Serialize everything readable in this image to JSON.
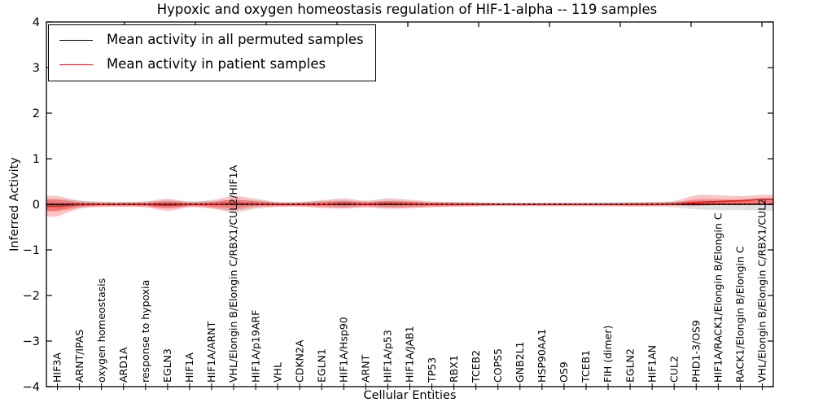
{
  "figure": {
    "title": "Hypoxic and oxygen homeostasis regulation of HIF-1-alpha -- 119 samples",
    "xlabel": "Cellular Entities",
    "ylabel": "Inferred Activity"
  },
  "legend": {
    "items": [
      {
        "label": "Mean activity in all permuted samples",
        "color": "#000000"
      },
      {
        "label": "Mean activity in patient samples",
        "color": "#e62222"
      }
    ],
    "position": "upper left"
  },
  "chart_data": {
    "type": "line",
    "title": "Hypoxic and oxygen homeostasis regulation of HIF-1-alpha -- 119 samples",
    "xlabel": "Cellular Entities",
    "ylabel": "Inferred Activity",
    "ylim": [
      -4,
      4
    ],
    "yticks": [
      4,
      3,
      2,
      1,
      0,
      -1,
      -2,
      -3,
      -4
    ],
    "ytick_labels": [
      "4",
      "3",
      "2",
      "1",
      "0",
      "−1",
      "−2",
      "−3",
      "−4"
    ],
    "grid": false,
    "zero_line": {
      "style": "dotted",
      "color": "#000000",
      "y": 0
    },
    "legend_position": "upper left",
    "categories": [
      "HIF3A",
      "ARNT/IPAS",
      "oxygen homeostasis",
      "ARD1A",
      "response to hypoxia",
      "EGLN3",
      "HIF1A",
      "HIF1A/ARNT",
      "VHL/Elongin B/Elongin C/RBX1/CUL2/HIF1A",
      "HIF1A/p19ARF",
      "VHL",
      "CDKN2A",
      "EGLN1",
      "HIF1A/Hsp90",
      "ARNT",
      "HIF1A/p53",
      "HIF1A/JAB1",
      "TP53",
      "RBX1",
      "TCEB2",
      "COPS5",
      "GNB2L1",
      "HSP90AA1",
      "OS9",
      "TCEB1",
      "FIH (dimer)",
      "EGLN2",
      "HIF1AN",
      "CUL2",
      "PHD1-3/OS9",
      "HIF1A/RACK1/Elongin B/Elongin C",
      "RACK1/Elongin B/Elongin C",
      "VHL/Elongin B/Elongin C/RBX1/CUL2"
    ],
    "series": [
      {
        "name": "Mean activity in all permuted samples",
        "color": "#000000",
        "values": [
          0,
          0,
          0,
          0,
          0,
          0,
          0,
          0,
          0,
          0,
          0,
          0,
          0,
          0,
          0,
          0,
          0,
          0,
          0,
          0,
          0,
          0,
          0,
          0,
          0,
          0,
          0,
          0,
          0,
          0,
          0,
          0,
          0
        ]
      },
      {
        "name": "Mean activity in patient samples",
        "color": "#e62222",
        "values": [
          -0.04,
          -0.01,
          0,
          0,
          0,
          -0.02,
          0,
          0,
          0.02,
          0.01,
          0,
          0,
          0,
          0.02,
          0,
          0.02,
          0.01,
          0,
          0,
          0,
          0,
          0,
          0,
          0,
          0,
          0,
          0,
          0,
          0.01,
          0.04,
          0.06,
          0.08,
          0.11
        ]
      }
    ],
    "bands": [
      {
        "name": "permuted-samples-spread",
        "color": "#777777",
        "opacity": 0.22,
        "upper": [
          0.12,
          0.08,
          0.06,
          0.05,
          0.06,
          0.08,
          0.06,
          0.07,
          0.1,
          0.08,
          0.05,
          0.05,
          0.07,
          0.08,
          0.06,
          0.08,
          0.07,
          0.05,
          0.05,
          0.05,
          0.04,
          0.04,
          0.04,
          0.04,
          0.04,
          0.05,
          0.05,
          0.05,
          0.06,
          0.07,
          0.07,
          0.07,
          0.07
        ],
        "lower": [
          -0.14,
          -0.09,
          -0.06,
          -0.05,
          -0.06,
          -0.09,
          -0.06,
          -0.08,
          -0.19,
          -0.1,
          -0.06,
          -0.05,
          -0.08,
          -0.09,
          -0.07,
          -0.09,
          -0.08,
          -0.06,
          -0.05,
          -0.05,
          -0.04,
          -0.04,
          -0.04,
          -0.05,
          -0.05,
          -0.05,
          -0.05,
          -0.05,
          -0.07,
          -0.11,
          -0.13,
          -0.13,
          -0.14
        ]
      },
      {
        "name": "patient-samples-spread",
        "color": "#ff0000",
        "opacity": 0.24,
        "upper": [
          0.18,
          0.08,
          0.05,
          0.05,
          0.06,
          0.12,
          0.06,
          0.09,
          0.18,
          0.12,
          0.05,
          0.05,
          0.09,
          0.13,
          0.08,
          0.13,
          0.1,
          0.06,
          0.05,
          0.04,
          0.03,
          0.03,
          0.03,
          0.03,
          0.03,
          0.03,
          0.04,
          0.05,
          0.07,
          0.2,
          0.2,
          0.18,
          0.21
        ],
        "lower": [
          -0.26,
          -0.09,
          -0.05,
          -0.05,
          -0.06,
          -0.14,
          -0.06,
          -0.09,
          -0.14,
          -0.07,
          -0.05,
          -0.05,
          -0.07,
          -0.09,
          -0.06,
          -0.09,
          -0.08,
          -0.06,
          -0.05,
          -0.04,
          -0.03,
          -0.03,
          -0.03,
          -0.03,
          -0.03,
          -0.03,
          -0.04,
          -0.04,
          -0.03,
          -0.04,
          -0.01,
          0.0,
          0.03
        ]
      }
    ]
  }
}
